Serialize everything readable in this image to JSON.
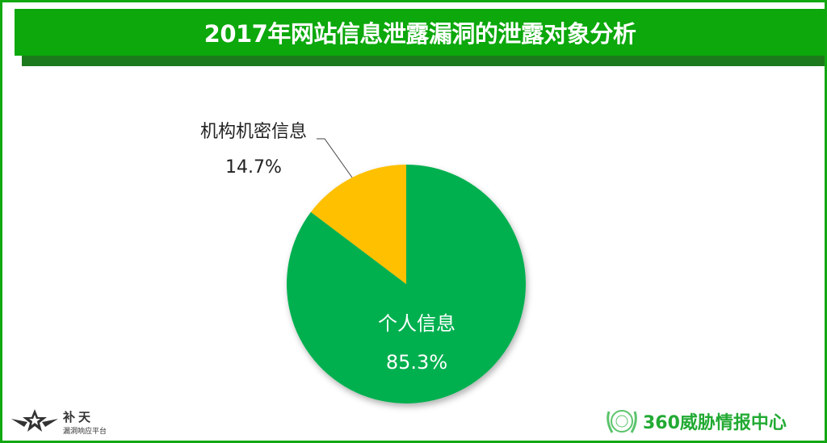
{
  "title": "2017年网站信息泄露漏洞的泄露对象分析",
  "chart_data": {
    "type": "pie",
    "title": "2017年网站信息泄露漏洞的泄露对象分析",
    "slices": [
      {
        "label": "个人信息",
        "value": 85.3,
        "value_label": "85.3%",
        "color": "#00b050"
      },
      {
        "label": "机构机密信息",
        "value": 14.7,
        "value_label": "14.7%",
        "color": "#ffc000"
      }
    ],
    "start": "top",
    "legend": "none"
  },
  "logos": {
    "left": {
      "name": "补天",
      "sub": "漏洞响应平台"
    },
    "right": {
      "name": "360威胁情报中心"
    }
  },
  "colors": {
    "banner": "#0ca80c",
    "banner_shadow": "#1c7a1c",
    "border": "#12a812"
  }
}
